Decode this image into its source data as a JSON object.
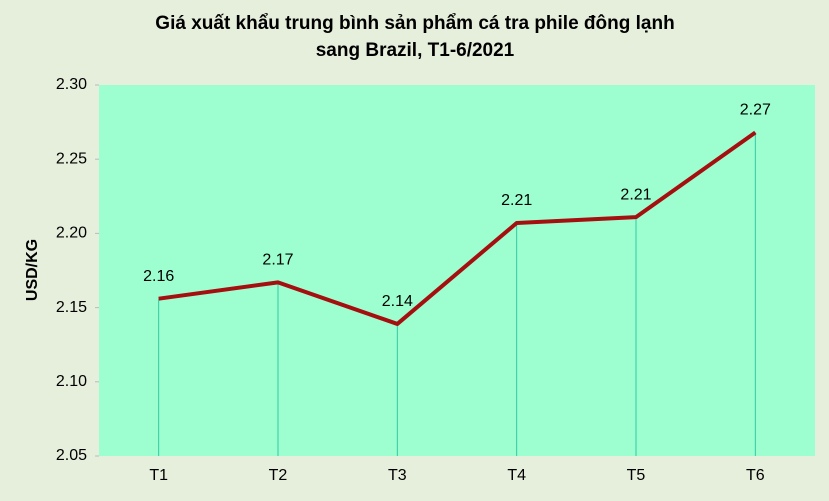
{
  "chart_data": {
    "type": "line",
    "title": [
      "Giá xuất khẩu trung bình sản phẩm cá tra phile đông lạnh",
      "sang Brazil, T1-6/2021"
    ],
    "y_label": "USD/KG",
    "categories": [
      "T1",
      "T2",
      "T3",
      "T4",
      "T5",
      "T6"
    ],
    "values": [
      2.156,
      2.167,
      2.139,
      2.207,
      2.211,
      2.268
    ],
    "value_labels": [
      "2.16",
      "2.17",
      "2.14",
      "2.21",
      "2.21",
      "2.27"
    ],
    "color": "#a50f0f",
    "drop_line_color": "#33c9a6",
    "ylim": [
      2.05,
      2.3
    ],
    "yticks": [
      2.05,
      {
        "value": 2.1,
        "label": "2.10"
      },
      2.15,
      {
        "value": 2.2,
        "label": "2.20"
      },
      2.25,
      {
        "value": 2.3,
        "label": "2.30"
      }
    ],
    "grid": false
  }
}
